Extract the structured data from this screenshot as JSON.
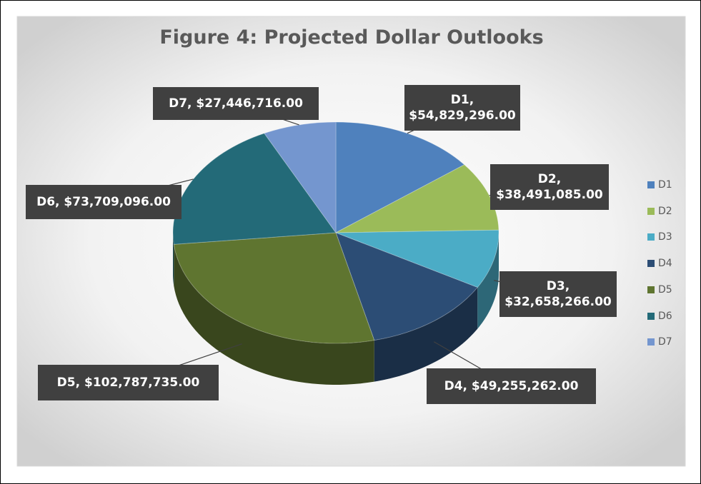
{
  "chart_data": {
    "type": "pie3d",
    "title": "Figure 4: Projected Dollar Outlooks",
    "categories": [
      "D1",
      "D2",
      "D3",
      "D4",
      "D5",
      "D6",
      "D7"
    ],
    "values": [
      54829296,
      38491085,
      32658266,
      49255262,
      102787735,
      73709096,
      27446716
    ],
    "value_labels": [
      "D1, $54,829,296.00",
      "D2, $38,491,085.00",
      "D3, $32,658,266.00",
      "D4, $49,255,262.00",
      "D5, $102,787,735.00",
      "D6, $73,709,096.00",
      "D7, $27,446,716.00"
    ],
    "colors": [
      "#4f81bd",
      "#9bbb59",
      "#4bacc6",
      "#2c4d75",
      "#5f7530",
      "#236a78",
      "#7496cf"
    ],
    "legend": "right"
  }
}
